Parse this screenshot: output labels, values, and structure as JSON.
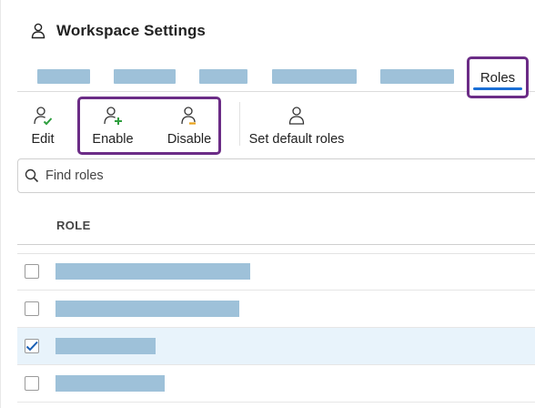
{
  "header": {
    "title": "Workspace Settings",
    "icon": "user-icon"
  },
  "tabs": {
    "active_label": "Roles",
    "redacted_count": 5,
    "accent_color": "#1a6fd6"
  },
  "toolbar": {
    "edit_label": "Edit",
    "enable_label": "Enable",
    "disable_label": "Disable",
    "default_label": "Set default roles"
  },
  "search": {
    "placeholder": "Find roles",
    "value": ""
  },
  "table": {
    "column_role": "ROLE",
    "rows": [
      {
        "checked": false
      },
      {
        "checked": false
      },
      {
        "checked": true
      },
      {
        "checked": false
      }
    ]
  },
  "colors": {
    "highlight_frame": "#6b2c86",
    "redaction": "#9ec1d9",
    "selected_row": "#e8f3fb",
    "check": "#1a5fb4"
  }
}
